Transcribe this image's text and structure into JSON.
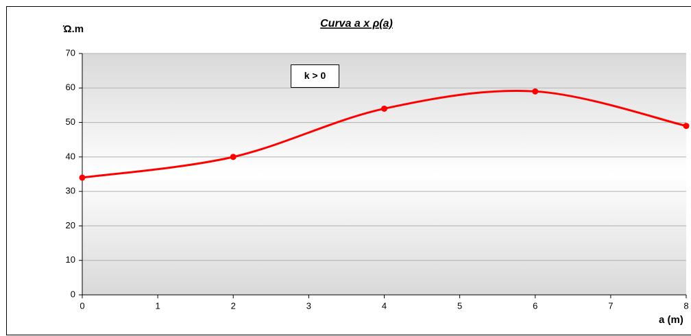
{
  "chart_data": {
    "type": "line",
    "title": "Curva a x ρ(a)",
    "y_label": "Ώ.m",
    "x_label": "a (m)",
    "annotation": "k > 0",
    "x": [
      0,
      2,
      4,
      6,
      8
    ],
    "series": [
      {
        "name": "ρ(a)",
        "color": "#ff0000",
        "values": [
          34,
          40,
          54,
          59,
          49
        ]
      }
    ],
    "xlim": [
      0,
      8
    ],
    "xticks": [
      0,
      1,
      2,
      3,
      4,
      5,
      6,
      7,
      8
    ],
    "ylim": [
      0,
      70
    ],
    "yticks": [
      0,
      10,
      20,
      30,
      40,
      50,
      60,
      70
    ],
    "grid": true,
    "smooth": true
  }
}
